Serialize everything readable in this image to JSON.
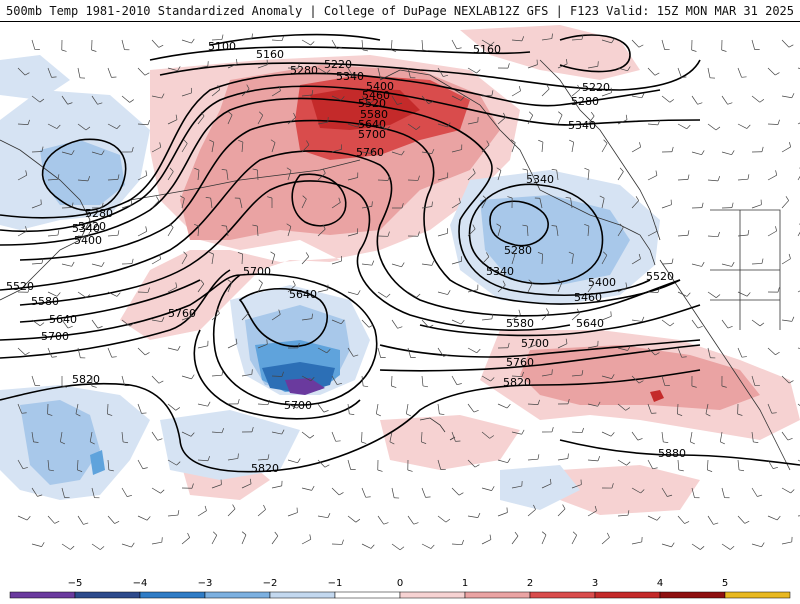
{
  "header": {
    "title_left": "500mb Temp 1981-2010 Standardized Anomaly | College of DuPage NEXLAB",
    "title_right": "12Z GFS | F123 Valid: 15Z MON MAR 31 2025"
  },
  "colors": {
    "contour": "#000000",
    "barb": "#444444",
    "coast": "#333333",
    "pos1": "#f6d2d2",
    "pos2": "#eaa3a3",
    "pos3": "#d94c4c",
    "pos4": "#c42a2a",
    "pos5": "#8e1010",
    "neg1": "#d6e3f3",
    "neg2": "#a8c8ea",
    "neg3": "#5fa3dc",
    "neg4": "#2c6fb6",
    "neg5": "#6a3a9e"
  },
  "contours": [
    {
      "value": "5100",
      "labels": [
        {
          "text": "5100"
        }
      ]
    },
    {
      "value": "5160",
      "labels": [
        {
          "text": "5160"
        },
        {
          "text": "5160"
        }
      ]
    },
    {
      "value": "5220",
      "labels": [
        {
          "text": "5220"
        },
        {
          "text": "5220"
        },
        {
          "text": "5220"
        }
      ]
    },
    {
      "value": "5280",
      "labels": [
        {
          "text": "5280"
        },
        {
          "text": "5280"
        },
        {
          "text": "5280"
        },
        {
          "text": "5280"
        }
      ]
    },
    {
      "value": "5340",
      "labels": [
        {
          "text": "5340"
        },
        {
          "text": "5340"
        },
        {
          "text": "5340"
        },
        {
          "text": "5340"
        },
        {
          "text": "5340"
        }
      ]
    },
    {
      "value": "5400",
      "labels": [
        {
          "text": "5400"
        },
        {
          "text": "5400"
        },
        {
          "text": "5400"
        }
      ]
    },
    {
      "value": "5460",
      "labels": [
        {
          "text": "5460"
        },
        {
          "text": "5460"
        }
      ]
    },
    {
      "value": "5520",
      "labels": [
        {
          "text": "5520"
        },
        {
          "text": "5520"
        },
        {
          "text": "5520"
        }
      ]
    },
    {
      "value": "5580",
      "labels": [
        {
          "text": "5580"
        },
        {
          "text": "5580"
        },
        {
          "text": "5580"
        }
      ]
    },
    {
      "value": "5640",
      "labels": [
        {
          "text": "5640"
        },
        {
          "text": "5640"
        },
        {
          "text": "5640"
        },
        {
          "text": "5640"
        }
      ]
    },
    {
      "value": "5700",
      "labels": [
        {
          "text": "5700"
        },
        {
          "text": "5700"
        },
        {
          "text": "5700"
        },
        {
          "text": "5700"
        },
        {
          "text": "5700"
        }
      ]
    },
    {
      "value": "5760",
      "labels": [
        {
          "text": "5760"
        },
        {
          "text": "5760"
        },
        {
          "text": "5760"
        }
      ]
    },
    {
      "value": "5820",
      "labels": [
        {
          "text": "5820"
        },
        {
          "text": "5820"
        },
        {
          "text": "5820"
        }
      ]
    },
    {
      "value": "5880",
      "labels": [
        {
          "text": "5880"
        }
      ]
    }
  ],
  "colorbar": {
    "ticks": [
      "−5",
      "−4",
      "−3",
      "−2",
      "−1",
      "0",
      "1",
      "2",
      "3",
      "4",
      "5"
    ],
    "colors": [
      "#6a3a9e",
      "#2c4a8c",
      "#2f7cc6",
      "#7cb0e0",
      "#c3d8ef",
      "#ffffff",
      "#f6d2d2",
      "#eaa3a3",
      "#d94c4c",
      "#c42a2a",
      "#8e1010",
      "#e8b820"
    ]
  }
}
